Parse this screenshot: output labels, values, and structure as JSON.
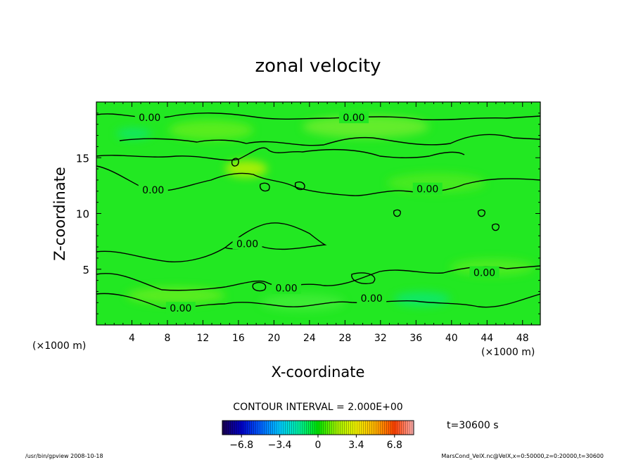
{
  "chart_data": {
    "type": "heatmap",
    "title": "zonal velocity",
    "xlabel": "X-coordinate",
    "ylabel": "Z-coordinate",
    "x_unit": "(×1000 m)",
    "y_unit": "(×1000 m)",
    "xlim": [
      0,
      50
    ],
    "ylim": [
      0,
      20
    ],
    "x_ticks": [
      4,
      8,
      12,
      16,
      20,
      24,
      28,
      32,
      36,
      40,
      44,
      48
    ],
    "y_ticks": [
      5,
      10,
      15
    ],
    "contour_interval_text": "CONTOUR INTERVAL = 2.000E+00",
    "time_text": "t=30600 s",
    "colorbar": {
      "range": [
        -8.5,
        8.5
      ],
      "tick_values": [
        -6.8,
        -3.4,
        0,
        3.4,
        6.8
      ],
      "tick_labels": [
        "−6.8",
        "−3.4",
        "0",
        "3.4",
        "6.8"
      ]
    },
    "contour_labels": [
      {
        "text": "0.00",
        "x": 6.0,
        "z": 18.6
      },
      {
        "text": "0.00",
        "x": 29.0,
        "z": 18.6
      },
      {
        "text": "0.00",
        "x": 6.4,
        "z": 12.1
      },
      {
        "text": "0.00",
        "x": 37.3,
        "z": 12.2
      },
      {
        "text": "0.00",
        "x": 17.0,
        "z": 7.3
      },
      {
        "text": "0.00",
        "x": 43.7,
        "z": 4.7
      },
      {
        "text": "0.00",
        "x": 21.4,
        "z": 3.3
      },
      {
        "text": "0.00",
        "x": 31.0,
        "z": 2.4
      },
      {
        "text": "0.00",
        "x": 9.5,
        "z": 1.5
      }
    ],
    "footer_left": "/usr/bin/gpview   2008-10-18",
    "footer_right": "MarsCond_VelX.nc@VelX,x=0:50000,z=0:20000,t=30600",
    "colors": {
      "background_field": "#22e822",
      "colormap": [
        "#1a0050",
        "#0000c8",
        "#0060ff",
        "#00c8ff",
        "#00f0a0",
        "#00e400",
        "#a0f000",
        "#f0f000",
        "#ffb000",
        "#ff4000",
        "#ffb0b0"
      ]
    }
  }
}
